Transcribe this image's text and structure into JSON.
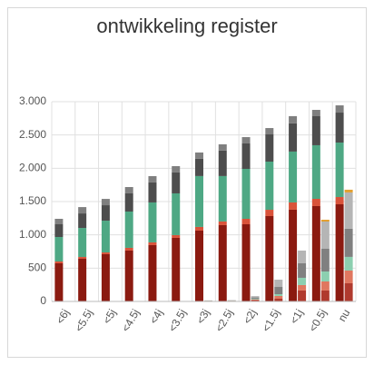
{
  "chart_data": {
    "type": "bar",
    "stacked": true,
    "grid": true,
    "title": "ontwikkeling register",
    "categories": [
      "<6j",
      "<5.5j",
      "<5j",
      "<4.5j",
      "<4j",
      "<3.5j",
      "<3j",
      "<2.5j",
      "<2j",
      "<1.5j",
      "<1j",
      "<0.5j",
      "nu"
    ],
    "ylim": [
      0,
      3000
    ],
    "yticks": [
      0,
      500,
      {
        "value": 1000,
        "label": "1.000"
      },
      {
        "value": 1500,
        "label": "1.500"
      },
      {
        "value": 2000,
        "label": "2.000"
      },
      {
        "value": 2500,
        "label": "2.500"
      },
      {
        "value": 3000,
        "label": "3.000"
      }
    ],
    "series": [
      {
        "stack": 0,
        "color": "#8b1a10",
        "values": [
          573,
          641,
          709,
          764,
          846,
          955,
          1064,
          1146,
          1159,
          1282,
          1378,
          1432,
          1459
        ]
      },
      {
        "stack": 0,
        "color": "#d9533a",
        "values": [
          27,
          27,
          27,
          41,
          41,
          41,
          55,
          55,
          82,
          95,
          109,
          109,
          109
        ]
      },
      {
        "stack": 0,
        "color": "#4ea884",
        "values": [
          368,
          436,
          477,
          545,
          600,
          627,
          764,
          682,
          750,
          723,
          764,
          805,
          818
        ]
      },
      {
        "stack": 0,
        "color": "#4d4d4d",
        "values": [
          191,
          218,
          232,
          273,
          300,
          314,
          259,
          382,
          382,
          409,
          423,
          436,
          450
        ]
      },
      {
        "stack": 0,
        "color": "#7f7f7f",
        "values": [
          82,
          95,
          95,
          95,
          95,
          95,
          95,
          95,
          95,
          95,
          109,
          95,
          109
        ]
      },
      {
        "stack": 1,
        "color": "#b03a2e",
        "values": [
          5,
          5,
          5,
          5,
          5,
          5,
          8,
          8,
          20,
          41,
          164,
          164,
          273
        ]
      },
      {
        "stack": 1,
        "color": "#e0775f",
        "values": [
          0,
          0,
          0,
          0,
          0,
          0,
          2,
          2,
          10,
          41,
          82,
          136,
          191
        ]
      },
      {
        "stack": 1,
        "color": "#8ccfb0",
        "values": [
          0,
          0,
          0,
          0,
          0,
          0,
          2,
          2,
          10,
          27,
          109,
          150,
          205
        ]
      },
      {
        "stack": 1,
        "color": "#808080",
        "values": [
          0,
          0,
          0,
          0,
          0,
          0,
          2,
          4,
          20,
          109,
          218,
          341,
          423
        ]
      },
      {
        "stack": 1,
        "color": "#b5b5b5",
        "values": [
          0,
          0,
          0,
          0,
          0,
          0,
          2,
          4,
          20,
          109,
          191,
          409,
          545
        ]
      },
      {
        "stack": 1,
        "color": "#e3a030",
        "values": [
          0,
          0,
          0,
          0,
          0,
          0,
          0,
          0,
          0,
          0,
          0,
          27,
          41
        ]
      }
    ]
  }
}
